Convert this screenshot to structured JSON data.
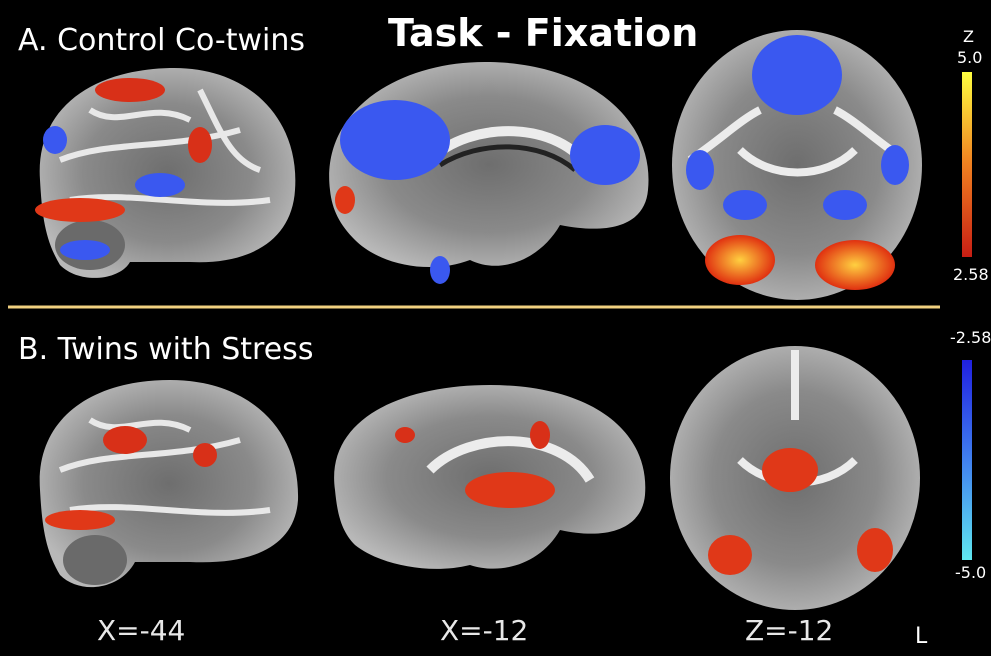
{
  "title": "Task - Fixation",
  "panels": [
    {
      "label": "A. Control Co-twins"
    },
    {
      "label": "B. Twins with Stress"
    }
  ],
  "colorbar": {
    "axis_label": "Z",
    "positive": [
      "5.0",
      "2.58"
    ],
    "negative": [
      "-2.58",
      "-5.0"
    ]
  },
  "slices": [
    "X=-44",
    "X=-12",
    "Z=-12"
  ],
  "orientation": "L"
}
